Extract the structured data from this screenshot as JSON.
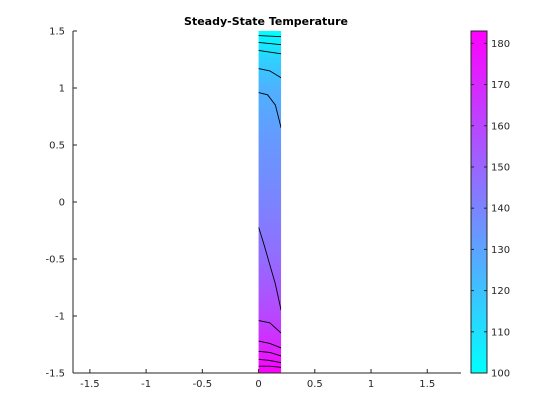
{
  "chart_data": {
    "type": "heatmap",
    "title": "Steady-State Temperature",
    "xlabel": "",
    "ylabel": "",
    "xlim": [
      -1.65,
      1.8
    ],
    "ylim": [
      -1.5,
      1.5
    ],
    "x_ticks": [
      -1.5,
      -1,
      -0.5,
      0,
      0.5,
      1,
      1.5
    ],
    "x_tick_labels": [
      "-1.5",
      "-1",
      "-0.5",
      "0",
      "0.5",
      "1",
      "1.5"
    ],
    "y_ticks": [
      1.5,
      1,
      0.5,
      0,
      -0.5,
      -1,
      -1.5
    ],
    "y_tick_labels": [
      "1.5",
      "1",
      "0.5",
      "0",
      "-0.5",
      "-1",
      "-1.5"
    ],
    "grid": false,
    "domain": {
      "x": [
        0,
        0.2
      ],
      "y": [
        -1.5,
        1.5
      ]
    },
    "temperature_profile": {
      "y": [
        -1.5,
        -1.25,
        -1.0,
        -0.5,
        0.0,
        0.5,
        1.0,
        1.25,
        1.5
      ],
      "values": [
        183,
        170,
        160,
        148,
        140,
        134,
        125,
        115,
        100
      ]
    },
    "colormap": {
      "low": "#00ffff",
      "high": "#ff00ff"
    },
    "colorbar": {
      "range": [
        100,
        183
      ],
      "ticks": [
        100,
        110,
        120,
        130,
        140,
        150,
        160,
        170,
        180
      ],
      "tick_labels": [
        "100",
        "110",
        "120",
        "130",
        "140",
        "150",
        "160",
        "170",
        "180"
      ],
      "placement": "right"
    },
    "contour_lines": [
      {
        "points": [
          [
            0.0,
            1.46
          ],
          [
            0.2,
            1.45
          ]
        ]
      },
      {
        "points": [
          [
            0.0,
            1.4
          ],
          [
            0.2,
            1.38
          ]
        ]
      },
      {
        "points": [
          [
            0.0,
            1.33
          ],
          [
            0.2,
            1.3
          ]
        ]
      },
      {
        "points": [
          [
            0.0,
            1.17
          ],
          [
            0.1,
            1.15
          ],
          [
            0.2,
            1.09
          ]
        ]
      },
      {
        "points": [
          [
            0.0,
            0.96
          ],
          [
            0.08,
            0.94
          ],
          [
            0.15,
            0.85
          ],
          [
            0.2,
            0.65
          ]
        ]
      },
      {
        "points": [
          [
            0.0,
            -0.22
          ],
          [
            0.05,
            -0.38
          ],
          [
            0.1,
            -0.55
          ],
          [
            0.15,
            -0.72
          ],
          [
            0.2,
            -0.95
          ]
        ]
      },
      {
        "points": [
          [
            0.0,
            -1.04
          ],
          [
            0.1,
            -1.06
          ],
          [
            0.2,
            -1.15
          ]
        ]
      },
      {
        "points": [
          [
            0.0,
            -1.22
          ],
          [
            0.1,
            -1.24
          ],
          [
            0.2,
            -1.28
          ]
        ]
      },
      {
        "points": [
          [
            0.0,
            -1.31
          ],
          [
            0.1,
            -1.32
          ],
          [
            0.2,
            -1.35
          ]
        ]
      },
      {
        "points": [
          [
            0.0,
            -1.38
          ],
          [
            0.1,
            -1.39
          ],
          [
            0.2,
            -1.41
          ]
        ]
      },
      {
        "points": [
          [
            0.0,
            -1.44
          ],
          [
            0.1,
            -1.44
          ],
          [
            0.2,
            -1.45
          ]
        ]
      }
    ]
  }
}
